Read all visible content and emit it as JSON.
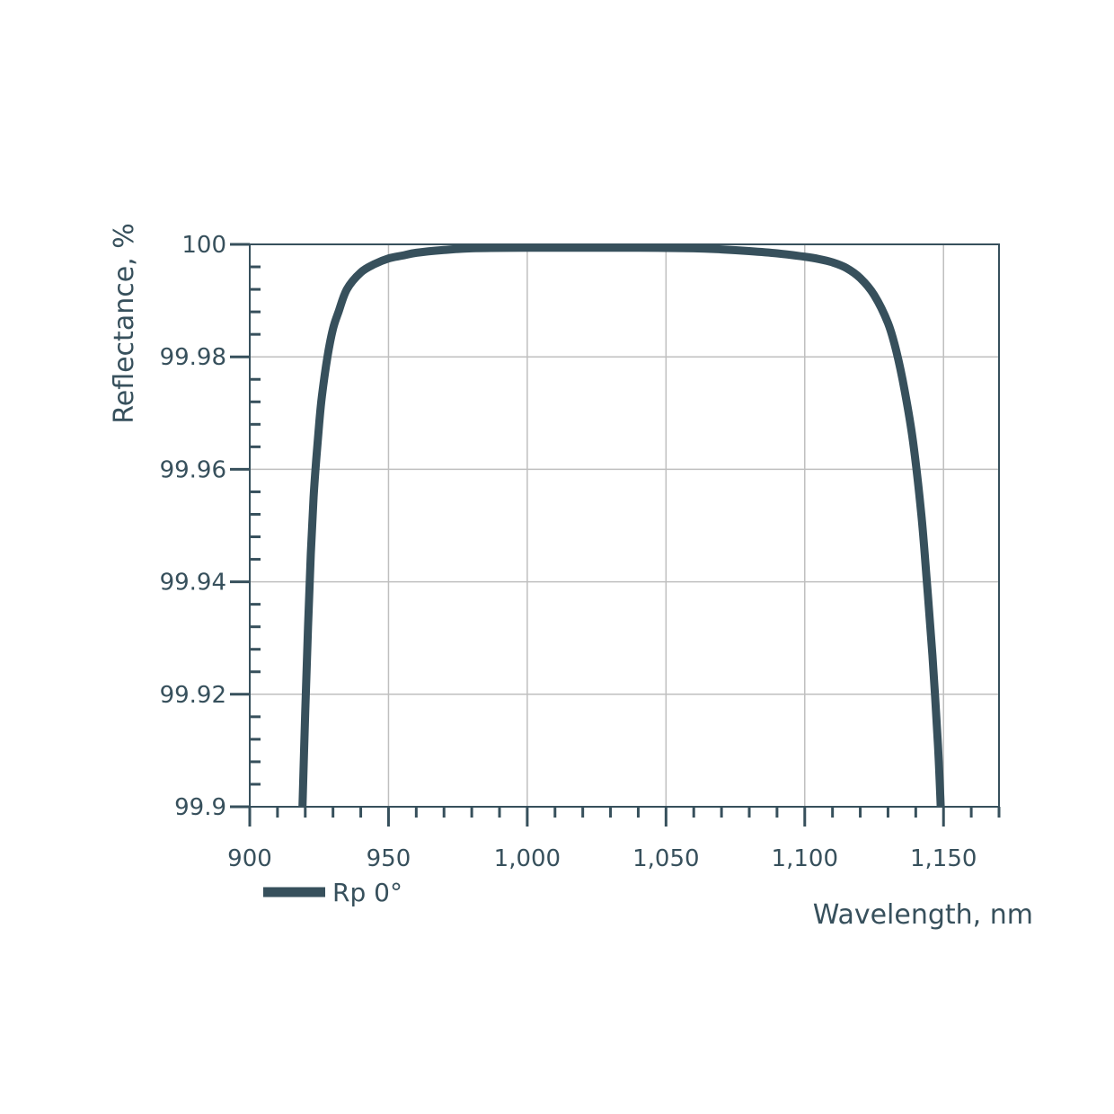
{
  "chart_data": {
    "type": "line",
    "xlabel": "Wavelength, nm",
    "ylabel": "Reflectance, %",
    "xlim": [
      900,
      1170
    ],
    "ylim": [
      99.9,
      100
    ],
    "x_ticks": [
      900,
      950,
      1000,
      1050,
      1100,
      1150
    ],
    "x_tick_labels": [
      "900",
      "950",
      "1,000",
      "1,050",
      "1,100",
      "1,150"
    ],
    "y_ticks": [
      99.9,
      99.92,
      99.94,
      99.96,
      99.98,
      100
    ],
    "y_tick_labels": [
      "99.9",
      "99.92",
      "99.94",
      "99.96",
      "99.98",
      "100"
    ],
    "x_minor_step": 10,
    "y_minor_step": 0.004,
    "grid": true,
    "legend_position": "bottom-left",
    "colors": {
      "series": "#37505c",
      "axis": "#37505c",
      "grid": "#bfbfbf"
    },
    "series": [
      {
        "name": "Rp 0°",
        "x": [
          919,
          920,
          921,
          922,
          923,
          924,
          925,
          926,
          928,
          930,
          932,
          935,
          940,
          945,
          950,
          955,
          960,
          970,
          980,
          1000,
          1020,
          1040,
          1060,
          1070,
          1080,
          1090,
          1100,
          1105,
          1110,
          1115,
          1120,
          1125,
          1130,
          1133,
          1136,
          1139,
          1142,
          1144,
          1146,
          1148,
          1149
        ],
        "y": [
          99.9,
          99.917,
          99.932,
          99.945,
          99.955,
          99.962,
          99.968,
          99.973,
          99.98,
          99.985,
          99.988,
          99.992,
          99.995,
          99.9965,
          99.9975,
          99.998,
          99.9985,
          99.999,
          99.9993,
          99.9994,
          99.9994,
          99.9994,
          99.9993,
          99.9991,
          99.9988,
          99.9984,
          99.9978,
          99.9974,
          99.9968,
          99.9958,
          99.994,
          99.991,
          99.986,
          99.981,
          99.974,
          99.965,
          99.952,
          99.94,
          99.927,
          99.911,
          99.9
        ]
      }
    ]
  }
}
